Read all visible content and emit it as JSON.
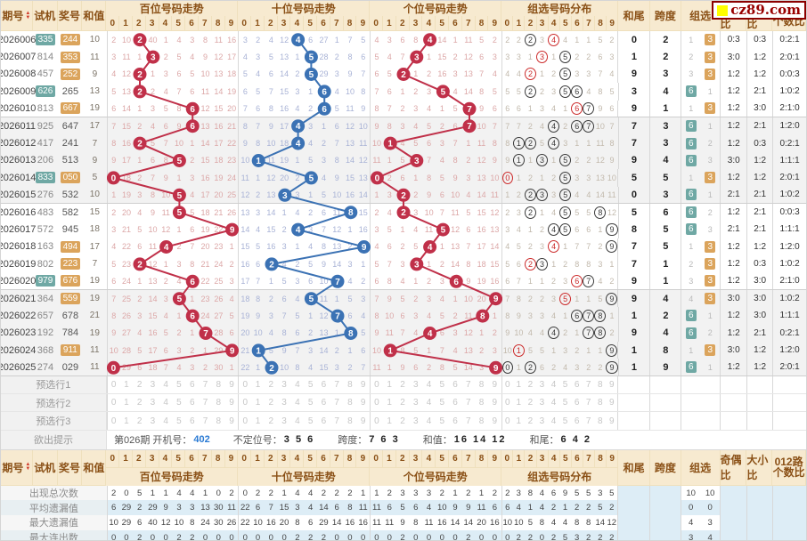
{
  "logo": {
    "text": "cz89.com"
  },
  "digits": "0 1 2 3 4 5 6 7 8 9",
  "header": {
    "issue": "期号",
    "shiji": "试机",
    "jiang": "奖号",
    "hezhi": "和值",
    "bai": "百位号码走势",
    "shi": "十位号码走势",
    "ge": "个位号码走势",
    "zu": "组选号码分布",
    "hewei": "和尾",
    "kuadu": "跨度",
    "zuxuan": "组选",
    "jiou": "奇偶比",
    "daxiao": "大小比",
    "lu012": "012路",
    "geshubi": "个数比"
  },
  "colors": {
    "bai_line": "#c03049",
    "shi_line": "#3b72b4",
    "ge_line": "#c03049",
    "teal_badge": "#6fa8a4",
    "orange_badge": "#dba45c",
    "header_bg": "#f7ead0",
    "header_text": "#8a5016",
    "link_blue": "#2b7bd4",
    "logo_red": "#990000"
  },
  "rows": [
    {
      "q": "2026006",
      "t": "335",
      "tb": 1,
      "j": "244",
      "jb": 1,
      "h": "10",
      "b": "2 10 . 40 1 4 3 8 11 16",
      "bh": 2,
      "s": "3 2 4 12 . 6 27 1 7 5",
      "sh": 4,
      "g": "4 3 6 8 . 14 1 11 5 2",
      "gh": 4,
      "z": "2 2 . 3 . 4 1 1 5 2",
      "zc": [
        2,
        4
      ],
      "zp": 4,
      "hw": "0",
      "kd": "2",
      "zx": [
        "1",
        "B3"
      ],
      "jo": "0:3",
      "dx": "0:3",
      "lu": "0:2:1"
    },
    {
      "q": "2026007",
      "t": "814",
      "tb": 0,
      "j": "353",
      "jb": 1,
      "h": "11",
      "b": "3 11 1 . 2 5 4 9 12 17",
      "bh": 3,
      "s": "4 3 5 13 1 . 28 2 8 6",
      "sh": 5,
      "g": "5 4 7 . 1 15 2 12 6 3",
      "gh": 3,
      "z": "3 3 1 . 1 . 2 2 6 3",
      "zc": [
        3,
        5
      ],
      "zp": 3,
      "hw": "1",
      "kd": "2",
      "zx": [
        "2",
        "B3"
      ],
      "jo": "3:0",
      "dx": "1:2",
      "lu": "2:0:1"
    },
    {
      "q": "2026008",
      "t": "457",
      "tb": 0,
      "j": "252",
      "jb": 1,
      "h": "9",
      "b": "4 12 . 1 3 6 5 10 13 18",
      "bh": 2,
      "s": "5 4 6 14 2 . 29 3 9 7",
      "sh": 5,
      "g": "6 5 . 1 2 16 3 13 7 4",
      "gh": 2,
      "z": "4 4 . 1 2 . 3 3 7 4",
      "zc": [
        2,
        5
      ],
      "zp": 2,
      "hw": "9",
      "kd": "3",
      "zx": [
        "3",
        "B3"
      ],
      "jo": "1:2",
      "dx": "1:2",
      "lu": "0:0:3"
    },
    {
      "q": "2026009",
      "t": "626",
      "tb": 1,
      "j": "265",
      "jb": 0,
      "h": "13",
      "b": "5 13 . 2 4 7 6 11 14 19",
      "bh": 2,
      "s": "6 5 7 15 3 1 . 4 10 8",
      "sh": 6,
      "g": "7 6 1 2 3 . 4 14 8 5",
      "gh": 5,
      "z": "5 5 . 2 3 . . 4 8 5",
      "zc": [
        2,
        5,
        6
      ],
      "hw": "3",
      "kd": "4",
      "zx": [
        "B6",
        "1"
      ],
      "jo": "1:2",
      "dx": "2:1",
      "lu": "1:0:2"
    },
    {
      "q": "2026010",
      "t": "813",
      "tb": 0,
      "j": "667",
      "jb": 1,
      "h": "19",
      "b": "6 14 1 3 5 8 . 12 15 20",
      "bh": 6,
      "s": "7 6 8 16 4 2 . 5 11 9",
      "sh": 6,
      "g": "8 7 2 3 4 1 5 . 9 6",
      "gh": 7,
      "z": "6 6 1 3 4 1 . . 9 6",
      "zc": [
        6,
        7
      ],
      "zp": 6,
      "hw": "9",
      "kd": "1",
      "zx": [
        "1",
        "B3"
      ],
      "jo": "1:2",
      "dx": "3:0",
      "lu": "2:1:0"
    },
    {
      "q": "2026011",
      "t": "925",
      "tb": 0,
      "j": "647",
      "jb": 0,
      "h": "17",
      "b": "7 15 2 4 6 9 . 13 16 21",
      "bh": 6,
      "s": "8 7 9 17 . 3 1 6 12 10",
      "sh": 4,
      "g": "9 8 3 4 5 2 6 . 10 7",
      "gh": 7,
      "z": "7 7 2 4 . 2 . . 10 7",
      "zc": [
        4,
        6,
        7
      ],
      "hw": "7",
      "kd": "3",
      "zx": [
        "B6",
        "1"
      ],
      "jo": "1:2",
      "dx": "2:1",
      "lu": "1:2:0"
    },
    {
      "q": "2026012",
      "t": "417",
      "tb": 0,
      "j": "241",
      "jb": 0,
      "h": "7",
      "b": "8 16 . 5 7 10 1 14 17 22",
      "bh": 2,
      "s": "9 8 10 18 . 4 2 7 13 11",
      "sh": 4,
      "g": "10 . 4 5 6 3 7 1 11 8",
      "gh": 1,
      "z": "8 . . 5 . 3 1 1 11 8",
      "zc": [
        1,
        2,
        4
      ],
      "hw": "7",
      "kd": "3",
      "zx": [
        "B6",
        "2"
      ],
      "jo": "1:2",
      "dx": "0:3",
      "lu": "0:2:1"
    },
    {
      "q": "2026013",
      "t": "206",
      "tb": 0,
      "j": "513",
      "jb": 0,
      "h": "9",
      "b": "9 17 1 6 8 . 2 15 18 23",
      "bh": 5,
      "s": "10 . 11 19 1 5 3 8 14 12",
      "sh": 1,
      "g": "11 1 5 . 7 4 8 2 12 9",
      "gh": 3,
      "z": "9 . 1 . 1 . 2 2 12 9",
      "zc": [
        1,
        3,
        5
      ],
      "hw": "9",
      "kd": "4",
      "zx": [
        "B6",
        "3"
      ],
      "jo": "3:0",
      "dx": "1:2",
      "lu": "1:1:1"
    },
    {
      "q": "2026014",
      "t": "833",
      "tb": 1,
      "j": "050",
      "jb": 1,
      "h": "5",
      "b": ". 18 2 7 9 1 3 16 19 24",
      "bh": 0,
      "s": "11 1 12 20 2 . 4 9 15 13",
      "sh": 5,
      "g": ". 2 6 1 8 5 9 3 13 10",
      "gh": 0,
      "z": ". 1 2 1 2 . 3 3 13 10",
      "zc": [
        0,
        5
      ],
      "zp": 0,
      "hw": "5",
      "kd": "5",
      "zx": [
        "1",
        "B3"
      ],
      "jo": "1:2",
      "dx": "1:2",
      "lu": "2:0:1"
    },
    {
      "q": "2026015",
      "t": "276",
      "tb": 0,
      "j": "532",
      "jb": 0,
      "h": "10",
      "b": "1 19 3 8 10 . 4 17 20 25",
      "bh": 5,
      "s": "12 2 13 . 3 1 5 10 16 14",
      "sh": 3,
      "g": "1 3 . 2 9 6 10 4 14 11",
      "gh": 2,
      "z": "1 2 . . 3 . 4 4 14 11",
      "zc": [
        2,
        3,
        5
      ],
      "hw": "0",
      "kd": "3",
      "zx": [
        "B6",
        "1"
      ],
      "jo": "2:1",
      "dx": "2:1",
      "lu": "1:0:2"
    },
    {
      "q": "2026016",
      "t": "483",
      "tb": 0,
      "j": "582",
      "jb": 0,
      "h": "15",
      "b": "2 20 4 9 11 . 5 18 21 26",
      "bh": 5,
      "s": "13 3 14 1 4 2 6 11 . 15",
      "sh": 8,
      "g": "2 4 . 3 10 7 11 5 15 12",
      "gh": 2,
      "z": "2 3 . 1 4 . 5 5 . 12",
      "zc": [
        2,
        5,
        8
      ],
      "hw": "5",
      "kd": "6",
      "zx": [
        "B6",
        "2"
      ],
      "jo": "1:2",
      "dx": "2:1",
      "lu": "0:0:3"
    },
    {
      "q": "2026017",
      "t": "572",
      "tb": 0,
      "j": "945",
      "jb": 0,
      "h": "18",
      "b": "3 21 5 10 12 1 6 19 22 .",
      "bh": 9,
      "s": "14 4 15 2 . 3 7 12 1 16",
      "sh": 4,
      "g": "3 5 1 4 11 . 12 6 16 13",
      "gh": 5,
      "z": "3 4 1 2 . . 6 6 1 .",
      "zc": [
        4,
        5,
        9
      ],
      "hw": "8",
      "kd": "5",
      "zx": [
        "B6",
        "3"
      ],
      "jo": "2:1",
      "dx": "2:1",
      "lu": "1:1:1"
    },
    {
      "q": "2026018",
      "t": "163",
      "tb": 0,
      "j": "494",
      "jb": 1,
      "h": "17",
      "b": "4 22 6 11 . 2 7 20 23 1",
      "bh": 4,
      "s": "15 5 16 3 1 4 8 13 2 .",
      "sh": 9,
      "g": "4 6 2 5 . 1 13 7 17 14",
      "gh": 4,
      "z": "4 5 2 3 . 1 7 7 2 .",
      "zc": [
        4,
        9
      ],
      "zp": 4,
      "hw": "7",
      "kd": "5",
      "zx": [
        "1",
        "B3"
      ],
      "jo": "1:2",
      "dx": "1:2",
      "lu": "1:2:0"
    },
    {
      "q": "2026019",
      "t": "802",
      "tb": 0,
      "j": "223",
      "jb": 1,
      "h": "7",
      "b": "5 23 . 12 1 3 8 21 24 2",
      "bh": 2,
      "s": "16 6 . 4 2 5 9 14 3 1",
      "sh": 2,
      "g": "5 7 3 . 1 2 14 8 18 15",
      "gh": 3,
      "z": "5 6 . . 1 2 8 8 3 1",
      "zc": [
        2,
        3
      ],
      "zp": 2,
      "hw": "7",
      "kd": "1",
      "zx": [
        "2",
        "B3"
      ],
      "jo": "1:2",
      "dx": "0:3",
      "lu": "1:0:2"
    },
    {
      "q": "2026020",
      "t": "979",
      "tb": 1,
      "j": "676",
      "jb": 1,
      "h": "19",
      "b": "6 24 1 13 2 4 . 22 25 3",
      "bh": 6,
      "s": "17 7 1 5 3 6 10 . 4 2",
      "sh": 7,
      "g": "6 8 4 1 2 3 . 9 19 16",
      "gh": 6,
      "z": "6 7 1 1 2 3 . . 4 2",
      "zc": [
        6,
        7
      ],
      "zp": 6,
      "hw": "9",
      "kd": "1",
      "zx": [
        "3",
        "B3"
      ],
      "jo": "1:2",
      "dx": "3:0",
      "lu": "2:1:0"
    },
    {
      "q": "2026021",
      "t": "364",
      "tb": 0,
      "j": "559",
      "jb": 1,
      "h": "19",
      "b": "7 25 2 14 3 . 1 23 26 4",
      "bh": 5,
      "s": "18 8 2 6 4 . 11 1 5 3",
      "sh": 5,
      "g": "7 9 5 2 3 4 1 10 20 .",
      "gh": 9,
      "z": "7 8 2 2 3 . 1 1 5 .",
      "zc": [
        5,
        9
      ],
      "zp": 5,
      "hw": "9",
      "kd": "4",
      "zx": [
        "4",
        "B3"
      ],
      "jo": "3:0",
      "dx": "3:0",
      "lu": "1:0:2"
    },
    {
      "q": "2026022",
      "t": "657",
      "tb": 0,
      "j": "678",
      "jb": 0,
      "h": "21",
      "b": "8 26 3 15 4 1 . 24 27 5",
      "bh": 6,
      "s": "19 9 3 7 5 1 12 . 6 4",
      "sh": 7,
      "g": "8 10 6 3 4 5 2 11 . 1",
      "gh": 8,
      "z": "8 9 3 3 4 1 . . . 1",
      "zc": [
        6,
        7,
        8
      ],
      "hw": "1",
      "kd": "2",
      "zx": [
        "B6",
        "1"
      ],
      "jo": "1:2",
      "dx": "3:0",
      "lu": "1:1:1"
    },
    {
      "q": "2026023",
      "t": "192",
      "tb": 0,
      "j": "784",
      "jb": 0,
      "h": "19",
      "b": "9 27 4 16 5 2 1 . 28 6",
      "bh": 7,
      "s": "20 10 4 8 6 2 13 1 . 5",
      "sh": 8,
      "g": "9 11 7 4 . 6 3 12 1 2",
      "gh": 4,
      "z": "9 10 4 4 . 2 1 . . 2",
      "zc": [
        4,
        7,
        8
      ],
      "hw": "9",
      "kd": "4",
      "zx": [
        "B6",
        "2"
      ],
      "jo": "1:2",
      "dx": "2:1",
      "lu": "0:2:1"
    },
    {
      "q": "2026024",
      "t": "368",
      "tb": 0,
      "j": "911",
      "jb": 1,
      "h": "11",
      "b": "10 28 5 17 6 3 2 1 29 .",
      "bh": 9,
      "s": "21 . 5 9 7 3 14 2 1 6",
      "sh": 1,
      "g": "10 . 8 5 1 7 4 13 2 3",
      "gh": 1,
      "z": "10 . 5 5 1 3 2 1 1 .",
      "zc": [
        1,
        9
      ],
      "zp": 1,
      "hw": "1",
      "kd": "8",
      "zx": [
        "1",
        "B3"
      ],
      "jo": "3:0",
      "dx": "1:2",
      "lu": "1:2:0"
    },
    {
      "q": "2026025",
      "t": "274",
      "tb": 0,
      "j": "029",
      "jb": 0,
      "h": "11",
      "b": ". 29 6 18 7 4 3 2 30 1",
      "bh": 0,
      "s": "22 1 . 10 8 4 15 3 2 7",
      "sh": 2,
      "g": "11 1 9 6 2 8 5 14 3 .",
      "gh": 9,
      "z": ". 1 . 6 2 4 3 2 2 .",
      "zc": [
        0,
        2,
        9
      ],
      "hw": "1",
      "kd": "9",
      "zx": [
        "B6",
        "1"
      ],
      "jo": "1:2",
      "dx": "1:2",
      "lu": "2:0:1"
    }
  ],
  "preselect": {
    "labels": [
      "预选行1",
      "预选行2",
      "预选行3"
    ]
  },
  "hint": {
    "label": "欲出提示",
    "parts": [
      {
        "t": "第026期 开机号：",
        "cls": "lbl"
      },
      {
        "t": "402",
        "cls": "link"
      },
      {
        "t": "不定位号：",
        "cls": "lbl"
      },
      {
        "t": "3 5 6",
        "cls": "val"
      },
      {
        "t": "跨度：",
        "cls": "lbl"
      },
      {
        "t": "7 6 3",
        "cls": "val"
      },
      {
        "t": "和值：",
        "cls": "lbl"
      },
      {
        "t": "16 14 12",
        "cls": "val"
      },
      {
        "t": "和尾：",
        "cls": "lbl"
      },
      {
        "t": "6 4 2",
        "cls": "val"
      }
    ]
  },
  "stats": [
    {
      "label": "出现总次数",
      "b": "2 0 5 1 1 4 4 1 0 2",
      "s": "0 2 2 1 4 4 2 2 2 1",
      "g": "1 2 3 3 3 2 1 2 1 2",
      "z": "2 3 8 4 6 9 5 5 3 5",
      "zx": [
        "10",
        "10"
      ]
    },
    {
      "label": "平均遗漏值",
      "b": "6 29 2 29 9 3 3 13 30 11",
      "s": "22 6 7 15 3 4 14 6 8 11",
      "g": "11 6 5 6 4 10 9 9 11 6",
      "z": "6 4 1 4 2 1 2 2 5 2",
      "zx": [
        "0",
        "0"
      ]
    },
    {
      "label": "最大遗漏值",
      "b": "10 29 6 40 12 10 8 24 30 26",
      "s": "22 10 16 20 8 6 29 14 16 16",
      "g": "11 11 9 8 11 16 14 14 20 16",
      "z": "10 10 5 8 4 4 8 8 14 12",
      "zx": [
        "4",
        "3"
      ]
    },
    {
      "label": "最大连出数",
      "b": "0 0 2 0 0 2 2 0 0 0",
      "s": "0 0 0 0 2 2 2 0 0 0",
      "g": "0 0 2 0 0 0 0 2 0 0",
      "z": "0 2 2 0 2 5 3 2 2 2",
      "zx": [
        "3",
        "4"
      ]
    }
  ]
}
